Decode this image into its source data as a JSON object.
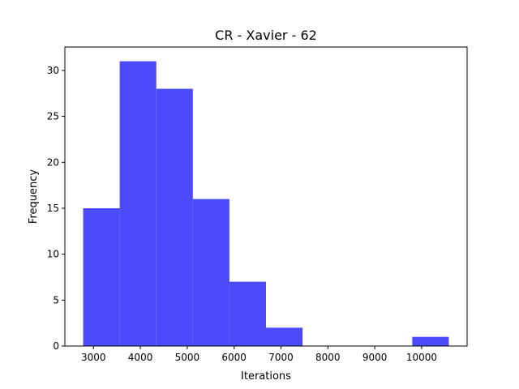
{
  "chart_data": {
    "type": "bar",
    "title": "CR - Xavier - 62",
    "xlabel": "Iterations",
    "ylabel": "Frequency",
    "bins": [
      {
        "start": 2780,
        "end": 3560,
        "count": 15
      },
      {
        "start": 3560,
        "end": 4340,
        "count": 31
      },
      {
        "start": 4340,
        "end": 5120,
        "count": 28
      },
      {
        "start": 5120,
        "end": 5900,
        "count": 16
      },
      {
        "start": 5900,
        "end": 6680,
        "count": 7
      },
      {
        "start": 6680,
        "end": 7460,
        "count": 2
      },
      {
        "start": 7460,
        "end": 8240,
        "count": 0
      },
      {
        "start": 8240,
        "end": 9020,
        "count": 0
      },
      {
        "start": 9020,
        "end": 9800,
        "count": 0
      },
      {
        "start": 9800,
        "end": 10580,
        "count": 1
      }
    ],
    "xlim": [
      2390,
      10970
    ],
    "ylim": [
      0,
      32.55
    ],
    "xticks": [
      3000,
      4000,
      5000,
      6000,
      7000,
      8000,
      9000,
      10000
    ],
    "yticks": [
      0,
      5,
      10,
      15,
      20,
      25,
      30
    ],
    "bar_color": "#4b4bfb",
    "grid": false
  }
}
